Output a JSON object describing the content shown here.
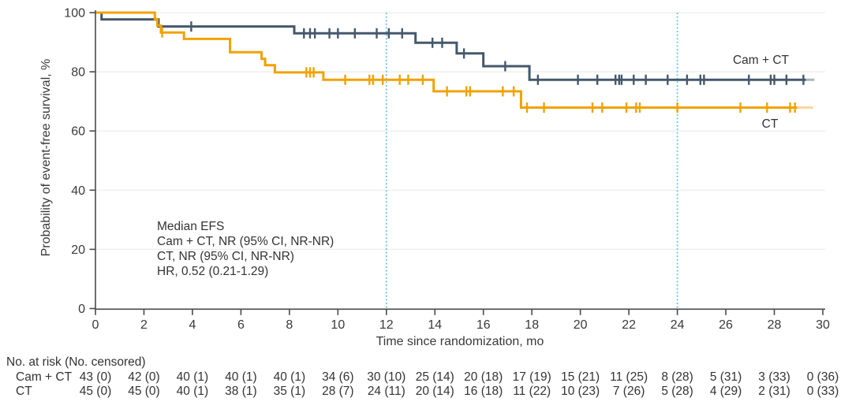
{
  "chart_data": {
    "type": "line",
    "subtype": "kaplan-meier-step",
    "title": "",
    "xlabel": "Time since randomization, mo",
    "ylabel": "Probability of event-free survival, %",
    "xlim": [
      0,
      30
    ],
    "ylim": [
      0,
      100
    ],
    "x_ticks": [
      0,
      2,
      4,
      6,
      8,
      10,
      12,
      14,
      16,
      18,
      20,
      22,
      24,
      26,
      28,
      30
    ],
    "y_ticks": [
      0,
      20,
      40,
      60,
      80,
      100
    ],
    "grid": "horizontal-light",
    "legend_position": "end-of-line",
    "reference_lines_x": [
      12,
      24
    ],
    "annotation_lines": [
      "Median EFS",
      "Cam + CT, NR (95% CI, NR-NR)",
      "CT, NR (95% CI, NR-NR)",
      "HR, 0.52 (0.21-1.29)"
    ],
    "series": [
      {
        "name": "Cam + CT",
        "color": "#44586B",
        "tail": {
          "from": 29.3,
          "to": 29.65,
          "color": "#A9B5BF"
        },
        "steps": [
          [
            0,
            100
          ],
          [
            0.25,
            100
          ],
          [
            0.25,
            97.7
          ],
          [
            2.6,
            97.7
          ],
          [
            2.6,
            95.3
          ],
          [
            8.2,
            95.3
          ],
          [
            8.2,
            93.0
          ],
          [
            13.2,
            93.0
          ],
          [
            13.2,
            89.8
          ],
          [
            14.9,
            89.8
          ],
          [
            14.9,
            86.2
          ],
          [
            16.0,
            86.2
          ],
          [
            16.0,
            81.9
          ],
          [
            17.9,
            81.9
          ],
          [
            17.9,
            77.3
          ],
          [
            29.3,
            77.3
          ]
        ],
        "censors": [
          [
            3.95,
            95.3
          ],
          [
            8.6,
            93.0
          ],
          [
            8.85,
            93.0
          ],
          [
            9.05,
            93.0
          ],
          [
            9.65,
            93.0
          ],
          [
            10.0,
            93.0
          ],
          [
            10.7,
            93.0
          ],
          [
            11.6,
            93.0
          ],
          [
            12.1,
            93.0
          ],
          [
            12.65,
            93.0
          ],
          [
            13.9,
            89.8
          ],
          [
            14.3,
            89.8
          ],
          [
            15.2,
            86.2
          ],
          [
            16.9,
            81.9
          ],
          [
            18.25,
            77.3
          ],
          [
            19.9,
            77.3
          ],
          [
            20.7,
            77.3
          ],
          [
            21.45,
            77.3
          ],
          [
            21.6,
            77.3
          ],
          [
            21.7,
            77.3
          ],
          [
            22.2,
            77.3
          ],
          [
            22.7,
            77.3
          ],
          [
            23.6,
            77.3
          ],
          [
            24.4,
            77.3
          ],
          [
            24.95,
            77.3
          ],
          [
            25.1,
            77.3
          ],
          [
            26.95,
            77.3
          ],
          [
            27.85,
            77.3
          ],
          [
            28.0,
            77.3
          ],
          [
            28.5,
            77.3
          ],
          [
            29.2,
            77.3
          ]
        ]
      },
      {
        "name": "CT",
        "color": "#F0A202",
        "tail": {
          "from": 28.95,
          "to": 29.6,
          "color": "#F8D69E"
        },
        "steps": [
          [
            0,
            100
          ],
          [
            2.45,
            100
          ],
          [
            2.45,
            97.8
          ],
          [
            2.55,
            97.8
          ],
          [
            2.55,
            95.6
          ],
          [
            2.7,
            95.6
          ],
          [
            2.7,
            93.3
          ],
          [
            3.65,
            93.3
          ],
          [
            3.65,
            91.1
          ],
          [
            5.55,
            91.1
          ],
          [
            5.55,
            86.6
          ],
          [
            6.85,
            86.6
          ],
          [
            6.85,
            84.4
          ],
          [
            7.0,
            84.4
          ],
          [
            7.0,
            82.2
          ],
          [
            7.4,
            82.2
          ],
          [
            7.4,
            79.8
          ],
          [
            9.4,
            79.8
          ],
          [
            9.4,
            77.3
          ],
          [
            13.95,
            77.3
          ],
          [
            13.95,
            73.4
          ],
          [
            17.55,
            73.4
          ],
          [
            17.55,
            67.9
          ],
          [
            28.95,
            67.9
          ]
        ],
        "censors": [
          [
            2.75,
            93.3
          ],
          [
            8.7,
            79.8
          ],
          [
            8.85,
            79.8
          ],
          [
            9.0,
            79.8
          ],
          [
            10.3,
            77.3
          ],
          [
            11.3,
            77.3
          ],
          [
            11.45,
            77.3
          ],
          [
            11.85,
            77.3
          ],
          [
            12.55,
            77.3
          ],
          [
            12.9,
            77.3
          ],
          [
            13.5,
            77.3
          ],
          [
            14.5,
            73.4
          ],
          [
            15.3,
            73.4
          ],
          [
            15.45,
            73.4
          ],
          [
            16.8,
            73.4
          ],
          [
            17.25,
            73.4
          ],
          [
            17.8,
            67.9
          ],
          [
            18.5,
            67.9
          ],
          [
            20.5,
            67.9
          ],
          [
            20.9,
            67.9
          ],
          [
            21.9,
            67.9
          ],
          [
            22.3,
            67.9
          ],
          [
            22.45,
            67.9
          ],
          [
            24.0,
            67.9
          ],
          [
            26.6,
            67.9
          ],
          [
            27.7,
            67.9
          ],
          [
            28.65,
            67.9
          ],
          [
            28.85,
            67.9
          ]
        ]
      }
    ]
  },
  "risk_table": {
    "header": "No. at risk (No. censored)",
    "times": [
      0,
      2,
      4,
      6,
      8,
      10,
      12,
      14,
      16,
      18,
      20,
      22,
      24,
      26,
      28,
      30
    ],
    "rows": [
      {
        "label": "Cam + CT",
        "values": [
          "43 (0)",
          "42 (0)",
          "40 (1)",
          "40 (1)",
          "40 (1)",
          "34 (6)",
          "30 (10)",
          "25 (14)",
          "20 (18)",
          "17 (19)",
          "15 (21)",
          "11 (25)",
          "8 (28)",
          "5 (31)",
          "3 (33)",
          "0 (36)"
        ]
      },
      {
        "label": "CT",
        "values": [
          "45 (0)",
          "45 (0)",
          "40 (1)",
          "38 (1)",
          "35 (1)",
          "28 (7)",
          "24 (11)",
          "20 (14)",
          "16 (18)",
          "11 (22)",
          "10 (23)",
          "7 (26)",
          "5 (28)",
          "4 (29)",
          "2 (31)",
          "0 (33)"
        ]
      }
    ]
  },
  "colors": {
    "cam_ct": "#44586B",
    "ct": "#F0A202",
    "reference_line": "#6BC4E8",
    "grid": "#ECECEC",
    "axis": "#4A4A4A",
    "text": "#333333"
  }
}
